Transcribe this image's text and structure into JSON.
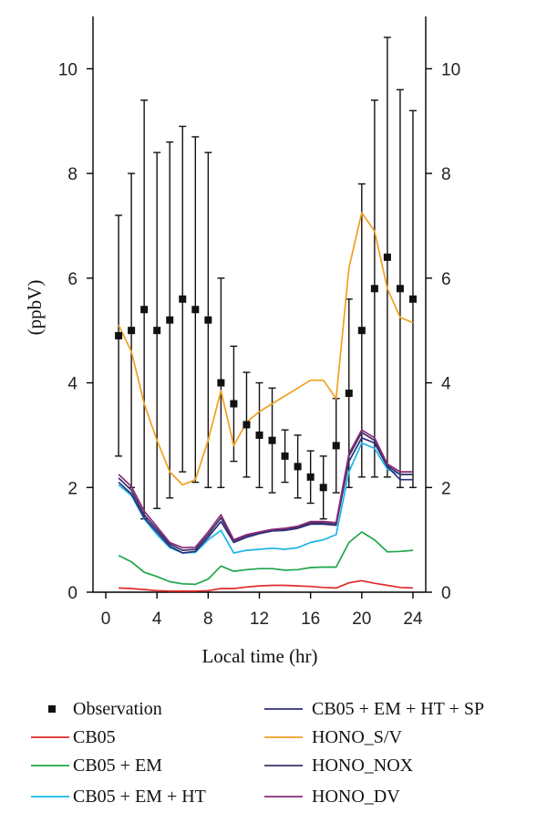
{
  "chart_data": {
    "type": "line",
    "xlabel": "Local time (hr)",
    "ylabel": "(ppbV)",
    "xlim": [
      -1,
      25
    ],
    "ylim": [
      0,
      11
    ],
    "xticks": [
      0,
      4,
      8,
      12,
      16,
      20,
      24
    ],
    "yticks": [
      0,
      2,
      4,
      6,
      8,
      10
    ],
    "x": [
      1,
      2,
      3,
      4,
      5,
      6,
      7,
      8,
      9,
      10,
      11,
      12,
      13,
      14,
      15,
      16,
      17,
      18,
      19,
      20,
      21,
      22,
      23,
      24
    ],
    "observation": {
      "name": "Observation",
      "values": [
        4.9,
        5.0,
        5.4,
        5.0,
        5.2,
        5.6,
        5.4,
        5.2,
        4.0,
        3.6,
        3.2,
        3.0,
        2.9,
        2.6,
        2.4,
        2.2,
        2.0,
        2.8,
        3.8,
        5.0,
        5.8,
        6.4,
        5.8,
        5.6
      ],
      "upper": [
        7.2,
        8.0,
        9.4,
        8.4,
        8.6,
        8.9,
        8.7,
        8.4,
        6.0,
        4.7,
        4.2,
        4.0,
        3.9,
        3.1,
        3.0,
        2.7,
        2.6,
        3.7,
        5.6,
        7.8,
        9.4,
        10.6,
        9.6,
        9.2
      ],
      "lower": [
        2.6,
        2.0,
        1.4,
        1.6,
        1.8,
        2.3,
        2.1,
        2.0,
        2.0,
        2.5,
        2.2,
        2.0,
        1.9,
        2.1,
        1.8,
        1.7,
        1.4,
        1.9,
        2.0,
        2.2,
        2.2,
        2.2,
        2.0,
        2.0
      ]
    },
    "series": [
      {
        "name": "CB05",
        "color": "#e02b2b",
        "values": [
          0.08,
          0.07,
          0.05,
          0.03,
          0.02,
          0.02,
          0.02,
          0.03,
          0.07,
          0.07,
          0.1,
          0.12,
          0.13,
          0.13,
          0.12,
          0.11,
          0.09,
          0.08,
          0.18,
          0.22,
          0.17,
          0.13,
          0.09,
          0.08
        ]
      },
      {
        "name": "CB05 + EM",
        "color": "#1fa64a",
        "values": [
          0.7,
          0.58,
          0.38,
          0.3,
          0.2,
          0.16,
          0.15,
          0.25,
          0.5,
          0.4,
          0.43,
          0.45,
          0.45,
          0.42,
          0.43,
          0.47,
          0.48,
          0.48,
          0.95,
          1.15,
          1.0,
          0.77,
          0.78,
          0.8
        ]
      },
      {
        "name": "CB05 + EM + HT",
        "color": "#1ab4e6",
        "values": [
          2.05,
          1.85,
          1.4,
          1.1,
          0.85,
          0.75,
          0.76,
          1.0,
          1.18,
          0.75,
          0.8,
          0.82,
          0.84,
          0.82,
          0.85,
          0.95,
          1.0,
          1.1,
          2.3,
          2.85,
          2.75,
          2.35,
          2.25,
          2.25
        ]
      },
      {
        "name": "CB05 + EM + HT + SP",
        "color": "#2b2f7a",
        "values": [
          2.1,
          1.88,
          1.42,
          1.15,
          0.88,
          0.75,
          0.78,
          1.05,
          1.35,
          0.95,
          1.05,
          1.12,
          1.17,
          1.18,
          1.22,
          1.3,
          1.3,
          1.28,
          2.5,
          2.95,
          2.85,
          2.4,
          2.15,
          2.15
        ]
      },
      {
        "name": "HONO_S/V",
        "color": "#f0a020",
        "values": [
          5.1,
          4.6,
          3.6,
          2.9,
          2.3,
          2.05,
          2.15,
          2.9,
          3.85,
          2.8,
          3.25,
          3.45,
          3.6,
          3.75,
          3.9,
          4.05,
          4.05,
          3.7,
          6.2,
          7.25,
          6.9,
          5.8,
          5.25,
          5.15
        ]
      },
      {
        "name": "HONO_NOX",
        "color": "#3b3268",
        "values": [
          2.18,
          1.95,
          1.48,
          1.2,
          0.92,
          0.8,
          0.82,
          1.1,
          1.42,
          0.98,
          1.08,
          1.14,
          1.19,
          1.2,
          1.24,
          1.32,
          1.32,
          1.3,
          2.6,
          3.05,
          2.9,
          2.42,
          2.25,
          2.25
        ]
      },
      {
        "name": "HONO_DV",
        "color": "#8a2a78",
        "values": [
          2.25,
          2.02,
          1.55,
          1.25,
          0.95,
          0.85,
          0.86,
          1.15,
          1.48,
          1.0,
          1.1,
          1.15,
          1.2,
          1.22,
          1.26,
          1.35,
          1.35,
          1.33,
          2.65,
          3.1,
          2.95,
          2.45,
          2.3,
          2.3
        ]
      }
    ],
    "legend": {
      "position": "bottom",
      "left_column": [
        "Observation",
        "CB05",
        "CB05 + EM",
        "CB05 + EM + HT"
      ],
      "right_column": [
        "CB05 + EM + HT + SP",
        "HONO_S/V",
        "HONO_NOX",
        "HONO_DV"
      ]
    }
  }
}
